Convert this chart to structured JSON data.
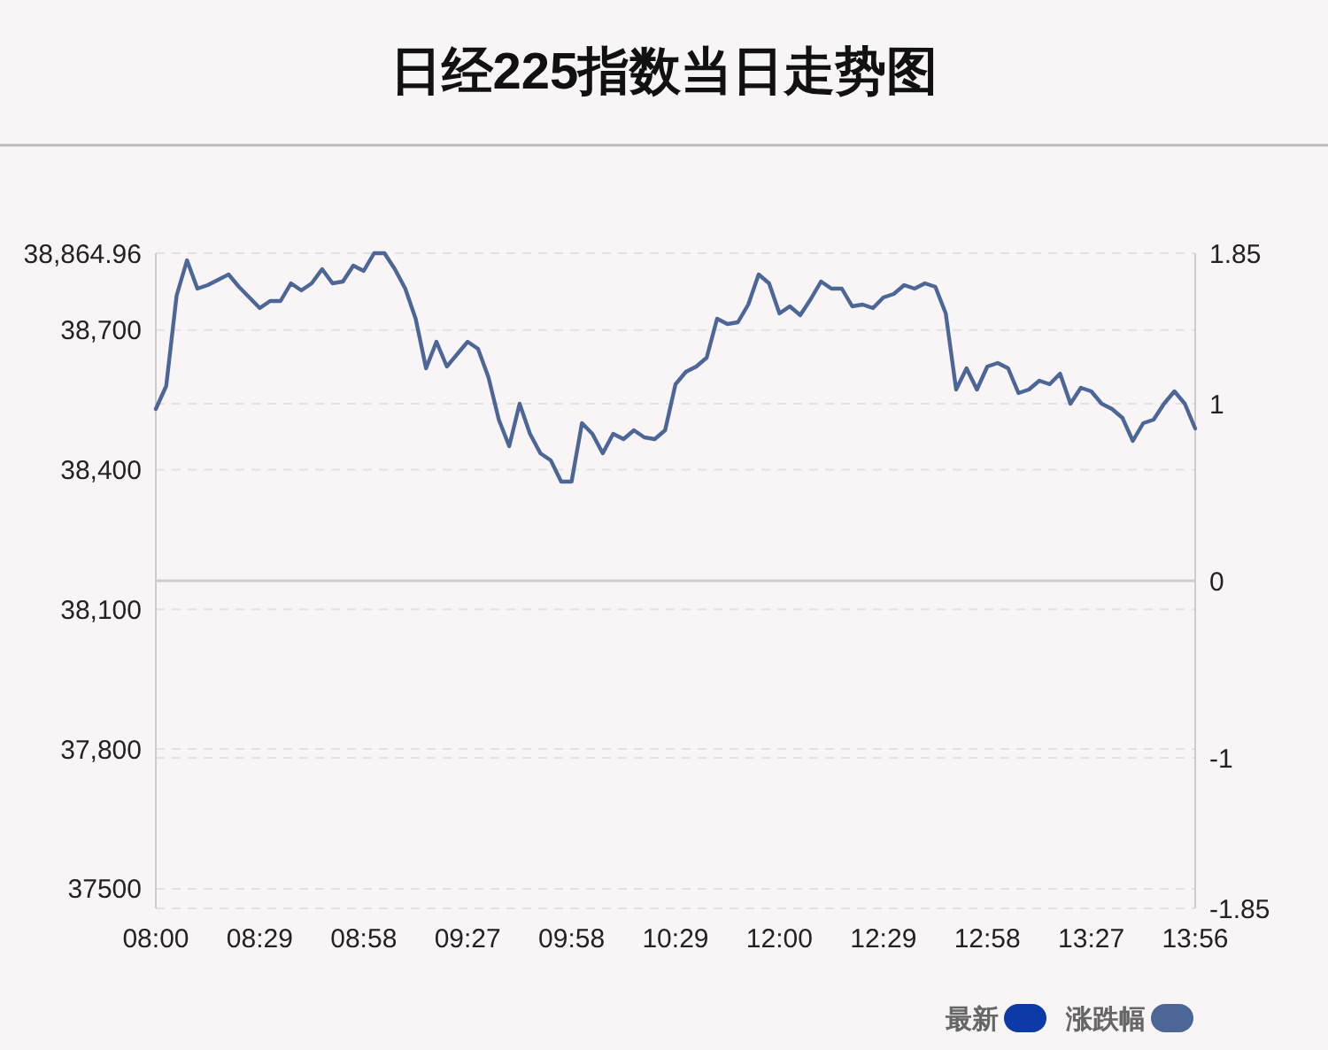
{
  "chart_data": {
    "type": "line",
    "title": "日经225指数当日走势图",
    "categories": [
      "08:00",
      null,
      null,
      null,
      null,
      null,
      null,
      null,
      null,
      null,
      "08:29",
      null,
      null,
      null,
      null,
      null,
      null,
      null,
      null,
      null,
      "08:58",
      null,
      null,
      null,
      null,
      null,
      null,
      null,
      null,
      null,
      "09:27",
      null,
      null,
      null,
      null,
      null,
      null,
      null,
      null,
      null,
      "09:58",
      null,
      null,
      null,
      null,
      null,
      null,
      null,
      null,
      null,
      "10:29",
      null,
      null,
      null,
      null,
      null,
      null,
      null,
      null,
      null,
      "12:00",
      null,
      null,
      null,
      null,
      null,
      null,
      null,
      null,
      null,
      "12:29",
      null,
      null,
      null,
      null,
      null,
      null,
      null,
      null,
      null,
      "12:58",
      null,
      null,
      null,
      null,
      null,
      null,
      null,
      null,
      null,
      "13:27",
      null,
      null,
      null,
      null,
      null,
      null,
      null,
      null,
      null,
      "13:56"
    ],
    "ylim": [
      37458,
      38864.96
    ],
    "yticks": [
      37500,
      {
        "value": 37800,
        "label": "37,800"
      },
      {
        "value": 38100,
        "label": "38,100"
      },
      {
        "value": 38400,
        "label": "38,400"
      },
      {
        "value": 38700,
        "label": "38,700"
      },
      {
        "value": 38864.96,
        "label": "38,864.96"
      }
    ],
    "y2lim": [
      -1.85,
      1.85
    ],
    "y2ticks": [
      -1.85,
      -1,
      0,
      1,
      1.85
    ],
    "grid": "y",
    "legend": "bottom right",
    "marker": "none",
    "line_style": "solid",
    "ref_lines": [
      {
        "axis": "y2",
        "value": 0,
        "color": "#cccccc"
      }
    ],
    "series": [
      {
        "name": "最新",
        "color": "#0c3aa6",
        "axis": "y",
        "values": [
          null,
          null,
          null,
          null,
          null,
          null,
          null,
          null,
          null,
          null,
          null,
          null,
          null,
          null,
          null,
          null,
          null,
          null,
          null,
          null,
          null,
          null,
          null,
          null,
          null,
          null,
          null,
          null,
          null,
          null,
          null,
          null,
          null,
          null,
          null,
          null,
          null,
          null,
          null,
          null,
          null,
          null,
          null,
          null,
          null,
          null,
          null,
          null,
          null,
          null,
          null,
          null,
          null,
          null,
          null,
          null,
          null,
          null,
          null,
          null,
          null,
          null,
          null,
          null,
          null,
          null,
          null,
          null,
          null,
          null,
          null,
          null,
          null,
          null,
          null,
          null,
          null,
          null,
          null,
          null,
          null,
          null,
          null,
          null,
          null,
          null,
          null,
          null,
          null,
          null,
          null,
          null,
          null,
          null,
          null,
          null,
          null,
          null,
          null,
          null,
          null
        ]
      },
      {
        "name": "涨跌幅",
        "color": "#4d6698",
        "axis": "y2",
        "values": [
          0.97,
          1.1,
          1.61,
          1.81,
          1.65,
          1.67,
          1.7,
          1.73,
          1.66,
          1.6,
          1.54,
          1.58,
          1.58,
          1.68,
          1.64,
          1.68,
          1.76,
          1.68,
          1.69,
          1.78,
          1.75,
          1.85,
          1.85,
          1.76,
          1.65,
          1.48,
          1.2,
          1.35,
          1.21,
          1.28,
          1.35,
          1.31,
          1.15,
          0.91,
          0.76,
          1.0,
          0.83,
          0.72,
          0.68,
          0.56,
          0.56,
          0.89,
          0.83,
          0.72,
          0.83,
          0.8,
          0.85,
          0.81,
          0.8,
          0.85,
          1.11,
          1.18,
          1.21,
          1.26,
          1.48,
          1.45,
          1.46,
          1.56,
          1.73,
          1.68,
          1.51,
          1.55,
          1.5,
          1.59,
          1.69,
          1.65,
          1.65,
          1.55,
          1.56,
          1.54,
          1.6,
          1.62,
          1.67,
          1.65,
          1.68,
          1.66,
          1.51,
          1.08,
          1.2,
          1.08,
          1.21,
          1.23,
          1.2,
          1.06,
          1.08,
          1.13,
          1.11,
          1.17,
          1.0,
          1.09,
          1.07,
          1.0,
          0.97,
          0.92,
          0.79,
          0.89,
          0.91,
          1.0,
          1.07,
          1.0,
          0.86
        ]
      }
    ]
  }
}
